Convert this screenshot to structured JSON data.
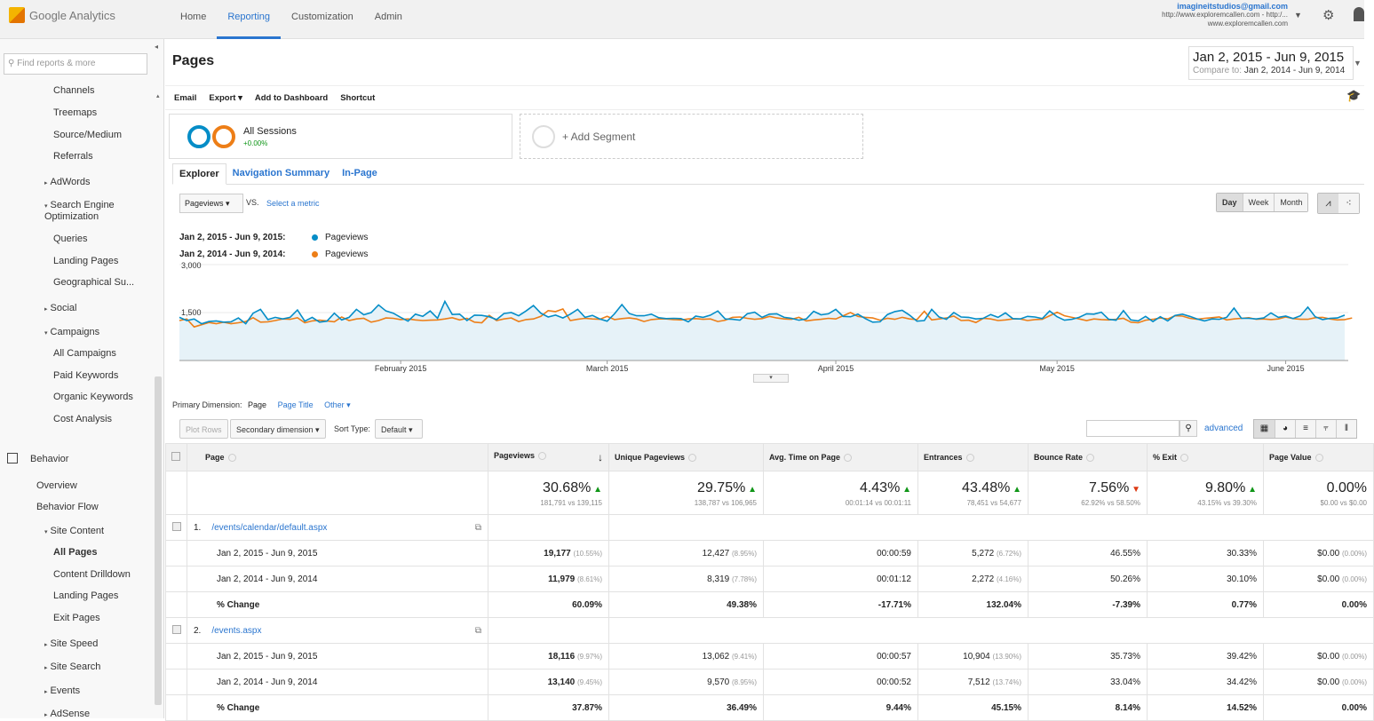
{
  "header": {
    "logo": "Google Analytics",
    "nav": [
      "Home",
      "Reporting",
      "Customization",
      "Admin"
    ],
    "active_nav": "Reporting",
    "account_email": "imagineitstudios@gmail.com",
    "account_property": "http://www.exploremcallen.com - http:/...",
    "account_view": "www.exploremcallen.com"
  },
  "sidebar": {
    "search_placeholder": "Find reports & more",
    "items": [
      {
        "label": "Channels",
        "level": "l2"
      },
      {
        "label": "Treemaps",
        "level": "l2"
      },
      {
        "label": "Source/Medium",
        "level": "l2"
      },
      {
        "label": "Referrals",
        "level": "l2"
      },
      {
        "label": "AdWords",
        "level": "l1",
        "arrow": "▸"
      },
      {
        "label": "Search Engine",
        "level": "l1",
        "arrow": "▾"
      },
      {
        "label": "Optimization",
        "level": "l1"
      },
      {
        "label": "Queries",
        "level": "l2"
      },
      {
        "label": "Landing Pages",
        "level": "l2"
      },
      {
        "label": "Geographical Su...",
        "level": "l2"
      },
      {
        "label": "Social",
        "level": "l1",
        "arrow": "▸"
      },
      {
        "label": "Campaigns",
        "level": "l1",
        "arrow": "▾"
      },
      {
        "label": "All Campaigns",
        "level": "l2"
      },
      {
        "label": "Paid Keywords",
        "level": "l2"
      },
      {
        "label": "Organic Keywords",
        "level": "l2"
      },
      {
        "label": "Cost Analysis",
        "level": "l2"
      },
      {
        "label": "Behavior",
        "level": "l0"
      },
      {
        "label": "Overview",
        "level": "l05"
      },
      {
        "label": "Behavior Flow",
        "level": "l05"
      },
      {
        "label": "Site Content",
        "level": "l1",
        "arrow": "▾"
      },
      {
        "label": "All Pages",
        "level": "l2",
        "active": true
      },
      {
        "label": "Content Drilldown",
        "level": "l2"
      },
      {
        "label": "Landing Pages",
        "level": "l2"
      },
      {
        "label": "Exit Pages",
        "level": "l2"
      },
      {
        "label": "Site Speed",
        "level": "l1",
        "arrow": "▸"
      },
      {
        "label": "Site Search",
        "level": "l1",
        "arrow": "▸"
      },
      {
        "label": "Events",
        "level": "l1",
        "arrow": "▸"
      },
      {
        "label": "AdSense",
        "level": "l1",
        "arrow": "▸"
      }
    ]
  },
  "page": {
    "title": "Pages",
    "date_range": "Jan 2, 2015 - Jun 9, 2015",
    "compare_label": "Compare to:",
    "compare_range": "Jan 2, 2014 - Jun 9, 2014",
    "toolbar": [
      "Email",
      "Export ▾",
      "Add to Dashboard",
      "Shortcut"
    ]
  },
  "segments": {
    "name": "All Sessions",
    "value": "+0.00%",
    "add_label": "+ Add Segment"
  },
  "tabs": [
    "Explorer",
    "Navigation Summary",
    "In-Page"
  ],
  "chart_controls": {
    "metric": "Pageviews",
    "vs": "VS.",
    "select_metric": "Select a metric",
    "periods": [
      "Day",
      "Week",
      "Month"
    ],
    "active_period": "Day"
  },
  "colors": {
    "series1": "#058dc7",
    "series2": "#ed7e17",
    "fill": "#e6f2f8",
    "accent": "#2a75cf"
  },
  "chart_data": {
    "type": "line",
    "series": [
      {
        "legend_label": "Jan 2, 2015 - Jun 9, 2015:",
        "name": "Pageviews",
        "values": [
          1350,
          1250,
          1300,
          1150,
          1220,
          1240,
          1200,
          1210,
          1330,
          1150,
          1480,
          1600,
          1280,
          1350,
          1300,
          1350,
          1580,
          1230,
          1350,
          1200,
          1230,
          1480,
          1270,
          1350,
          1600,
          1430,
          1500,
          1740,
          1550,
          1480,
          1350,
          1230,
          1450,
          1380,
          1550,
          1320,
          1850,
          1440,
          1450,
          1250,
          1420,
          1410,
          1370,
          1280,
          1470,
          1500,
          1400,
          1550,
          1720,
          1480,
          1360,
          1420,
          1330,
          1450,
          1600,
          1350,
          1410,
          1300,
          1230,
          1460,
          1750,
          1470,
          1400,
          1400,
          1450,
          1340,
          1310,
          1320,
          1310,
          1210,
          1390,
          1350,
          1420,
          1550,
          1300,
          1290,
          1260,
          1460,
          1510,
          1350,
          1450,
          1460,
          1350,
          1320,
          1260,
          1300,
          1540,
          1430,
          1460,
          1600,
          1380,
          1370,
          1450,
          1310,
          1200,
          1210,
          1440,
          1530,
          1570,
          1420,
          1230,
          1250,
          1600,
          1360,
          1290,
          1500,
          1360,
          1350,
          1300,
          1320,
          1440,
          1350,
          1490,
          1310,
          1300,
          1380,
          1360,
          1310,
          1550,
          1370,
          1260,
          1290,
          1350,
          1460,
          1450,
          1510,
          1290,
          1260,
          1560,
          1270,
          1240,
          1380,
          1220,
          1370,
          1240,
          1410,
          1450,
          1380,
          1300,
          1240,
          1300,
          1290,
          1350,
          1640,
          1320,
          1320,
          1300,
          1330,
          1490,
          1350,
          1390,
          1310,
          1400,
          1670,
          1370,
          1280,
          1320,
          1330,
          1420
        ],
        "color": "#058dc7"
      },
      {
        "legend_label": "Jan 2, 2014 - Jun 9, 2014:",
        "name": "Pageviews",
        "values": [
          1250,
          1300,
          1050,
          1120,
          1190,
          1150,
          1200,
          1150,
          1180,
          1220,
          1340,
          1200,
          1210,
          1250,
          1300,
          1290,
          1340,
          1180,
          1240,
          1260,
          1240,
          1210,
          1360,
          1250,
          1300,
          1320,
          1200,
          1250,
          1330,
          1320,
          1280,
          1300,
          1270,
          1250,
          1260,
          1270,
          1300,
          1340,
          1270,
          1320,
          1200,
          1180,
          1410,
          1250,
          1300,
          1330,
          1220,
          1280,
          1300,
          1380,
          1560,
          1530,
          1610,
          1250,
          1290,
          1320,
          1300,
          1290,
          1380,
          1280,
          1310,
          1330,
          1300,
          1220,
          1280,
          1300,
          1300,
          1280,
          1270,
          1300,
          1310,
          1290,
          1300,
          1220,
          1260,
          1350,
          1360,
          1320,
          1290,
          1310,
          1380,
          1330,
          1300,
          1290,
          1350,
          1240,
          1270,
          1290,
          1320,
          1300,
          1400,
          1500,
          1380,
          1350,
          1330,
          1260,
          1320,
          1290,
          1350,
          1300,
          1280,
          1540,
          1270,
          1300,
          1330,
          1390,
          1250,
          1260,
          1190,
          1320,
          1300,
          1250,
          1270,
          1300,
          1300,
          1250,
          1280,
          1290,
          1400,
          1510,
          1400,
          1350,
          1300,
          1250,
          1300,
          1280,
          1270,
          1290,
          1320,
          1200,
          1180,
          1260,
          1290,
          1330,
          1300,
          1400,
          1390,
          1320,
          1290,
          1320,
          1340,
          1360,
          1270,
          1300,
          1320,
          1340,
          1290,
          1300,
          1280,
          1300,
          1360,
          1310,
          1290,
          1290,
          1340,
          1350,
          1300,
          1270,
          1280,
          1330
        ],
        "color": "#ed7e17"
      }
    ],
    "y_ticks": [
      "3,000",
      "1,500"
    ],
    "ylim": [
      0,
      3000
    ],
    "x_ticks": [
      "February 2015",
      "March 2015",
      "April 2015",
      "May 2015",
      "June 2015"
    ],
    "x_tick_days": [
      30,
      58,
      89,
      119,
      150
    ]
  },
  "table": {
    "primary_dimension_label": "Primary Dimension:",
    "primary_dimension": "Page",
    "dimension_links": [
      "Page Title",
      "Other ▾"
    ],
    "plot_rows": "Plot Rows",
    "secondary_dimension": "Secondary dimension ▾",
    "sort_type_label": "Sort Type:",
    "sort_type": "Default ▾",
    "advanced": "advanced",
    "columns": [
      "Page",
      "Pageviews",
      "Unique Pageviews",
      "Avg. Time on Page",
      "Entrances",
      "Bounce Rate",
      "% Exit",
      "Page Value"
    ],
    "sort_arrow": "↓",
    "totals": [
      {
        "big": "30.68%",
        "dir": "up",
        "small": "181,791 vs 139,115"
      },
      {
        "big": "29.75%",
        "dir": "up",
        "small": "138,787 vs 106,965"
      },
      {
        "big": "4.43%",
        "dir": "up",
        "small": "00:01:14 vs 00:01:11"
      },
      {
        "big": "43.48%",
        "dir": "up",
        "small": "78,451 vs 54,677"
      },
      {
        "big": "7.56%",
        "dir": "down",
        "small": "62.92% vs 58.50%"
      },
      {
        "big": "9.80%",
        "dir": "up",
        "small": "43.15% vs 39.30%"
      },
      {
        "big": "0.00%",
        "dir": "",
        "small": "$0.00 vs $0.00"
      }
    ],
    "rows": [
      {
        "num": "1.",
        "page": "/events/calendar/default.aspx",
        "sub": [
          {
            "label": "Jan 2, 2015 - Jun 9, 2015",
            "cells": [
              [
                "19,177",
                "(10.55%)"
              ],
              [
                "12,427",
                "(8.95%)"
              ],
              [
                "00:00:59",
                ""
              ],
              [
                "5,272",
                "(6.72%)"
              ],
              [
                "46.55%",
                ""
              ],
              [
                "30.33%",
                ""
              ],
              [
                "$0.00",
                "(0.00%)"
              ]
            ]
          },
          {
            "label": "Jan 2, 2014 - Jun 9, 2014",
            "cells": [
              [
                "11,979",
                "(8.61%)"
              ],
              [
                "8,319",
                "(7.78%)"
              ],
              [
                "00:01:12",
                ""
              ],
              [
                "2,272",
                "(4.16%)"
              ],
              [
                "50.26%",
                ""
              ],
              [
                "30.10%",
                ""
              ],
              [
                "$0.00",
                "(0.00%)"
              ]
            ]
          },
          {
            "label": "% Change",
            "cells": [
              [
                "60.09%",
                ""
              ],
              [
                "49.38%",
                ""
              ],
              [
                "-17.71%",
                ""
              ],
              [
                "132.04%",
                ""
              ],
              [
                "-7.39%",
                ""
              ],
              [
                "0.77%",
                ""
              ],
              [
                "0.00%",
                ""
              ]
            ]
          }
        ]
      },
      {
        "num": "2.",
        "page": "/events.aspx",
        "sub": [
          {
            "label": "Jan 2, 2015 - Jun 9, 2015",
            "cells": [
              [
                "18,116",
                "(9.97%)"
              ],
              [
                "13,062",
                "(9.41%)"
              ],
              [
                "00:00:57",
                ""
              ],
              [
                "10,904",
                "(13.90%)"
              ],
              [
                "35.73%",
                ""
              ],
              [
                "39.42%",
                ""
              ],
              [
                "$0.00",
                "(0.00%)"
              ]
            ]
          },
          {
            "label": "Jan 2, 2014 - Jun 9, 2014",
            "cells": [
              [
                "13,140",
                "(9.45%)"
              ],
              [
                "9,570",
                "(8.95%)"
              ],
              [
                "00:00:52",
                ""
              ],
              [
                "7,512",
                "(13.74%)"
              ],
              [
                "33.04%",
                ""
              ],
              [
                "34.42%",
                ""
              ],
              [
                "$0.00",
                "(0.00%)"
              ]
            ]
          },
          {
            "label": "% Change",
            "cells": [
              [
                "37.87%",
                ""
              ],
              [
                "36.49%",
                ""
              ],
              [
                "9.44%",
                ""
              ],
              [
                "45.15%",
                ""
              ],
              [
                "8.14%",
                ""
              ],
              [
                "14.52%",
                ""
              ],
              [
                "0.00%",
                ""
              ]
            ]
          }
        ]
      }
    ]
  }
}
